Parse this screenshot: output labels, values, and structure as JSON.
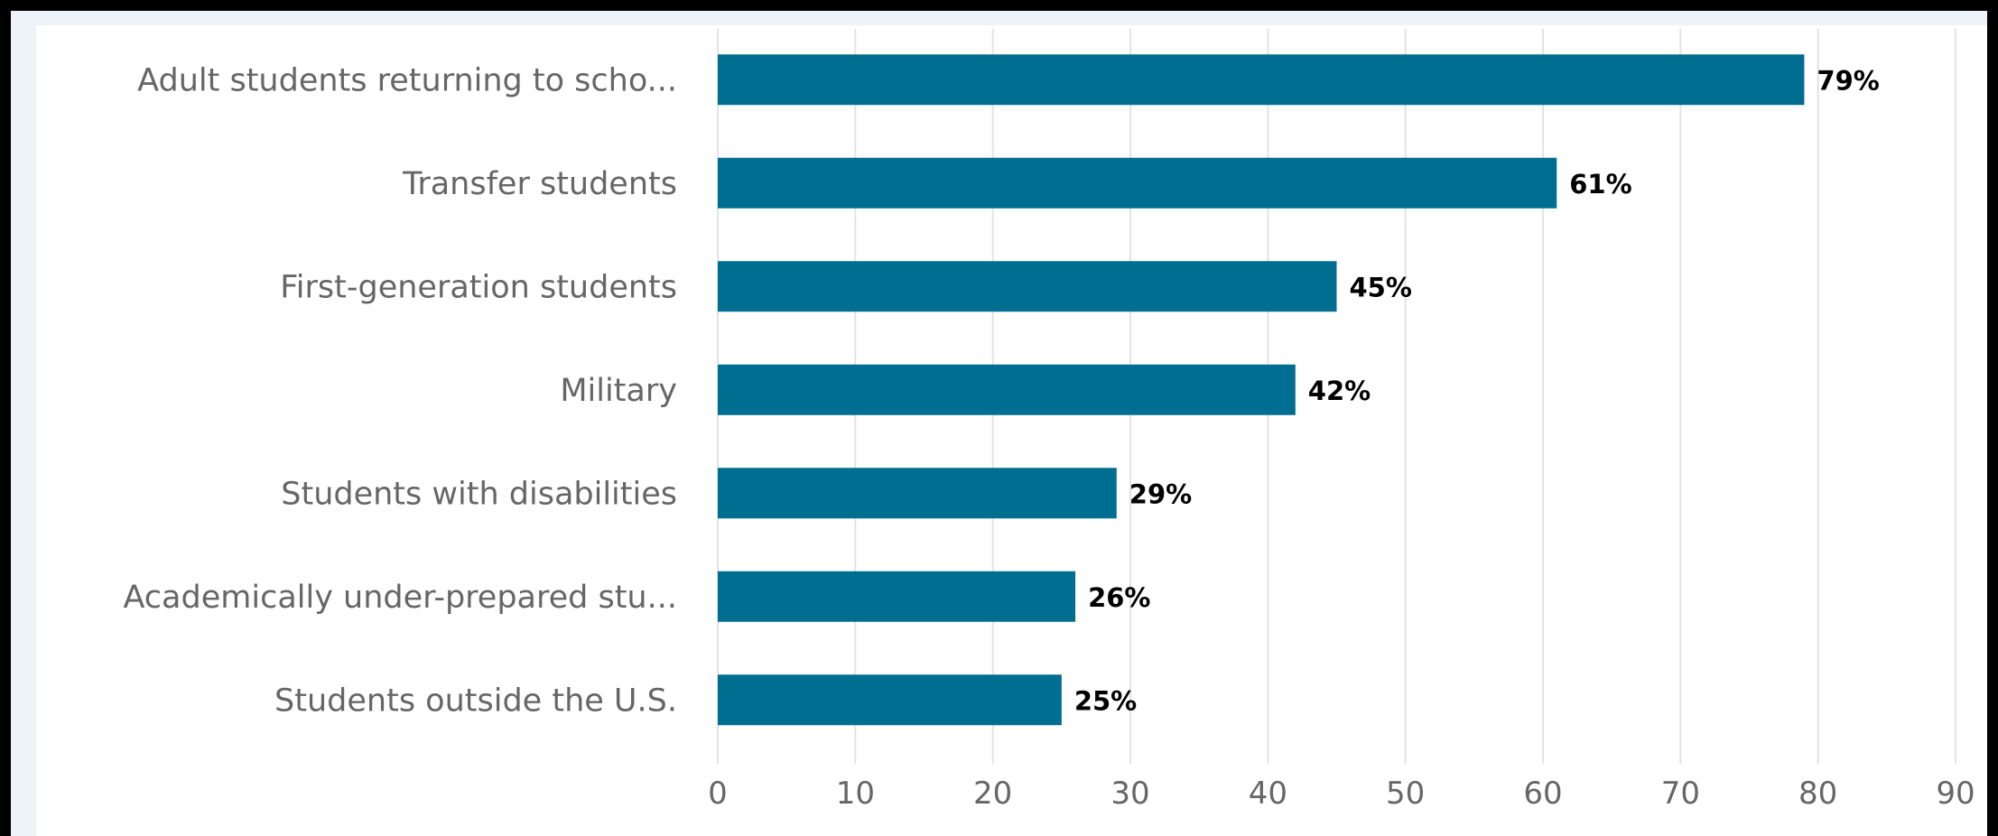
{
  "colors": {
    "bar": "#006e91",
    "gridline": "#e3e3e3",
    "background": "#ffffff",
    "outer_background": "#eef3f8"
  },
  "chart_data": {
    "type": "bar",
    "orientation": "horizontal",
    "categories": [
      "Adult students returning to scho...",
      "Transfer students",
      "First-generation students",
      "Military",
      "Students with disabilities",
      "Academically under-prepared stu...",
      "Students outside the U.S."
    ],
    "values": [
      79,
      61,
      45,
      42,
      29,
      26,
      25
    ],
    "data_labels": [
      "79%",
      "61%",
      "45%",
      "42%",
      "29%",
      "26%",
      "25%"
    ],
    "x_ticks": [
      "0",
      "10",
      "20",
      "30",
      "40",
      "50",
      "60",
      "70",
      "80",
      "90"
    ],
    "xlim": [
      0,
      90
    ],
    "grid": true,
    "legend": false
  }
}
